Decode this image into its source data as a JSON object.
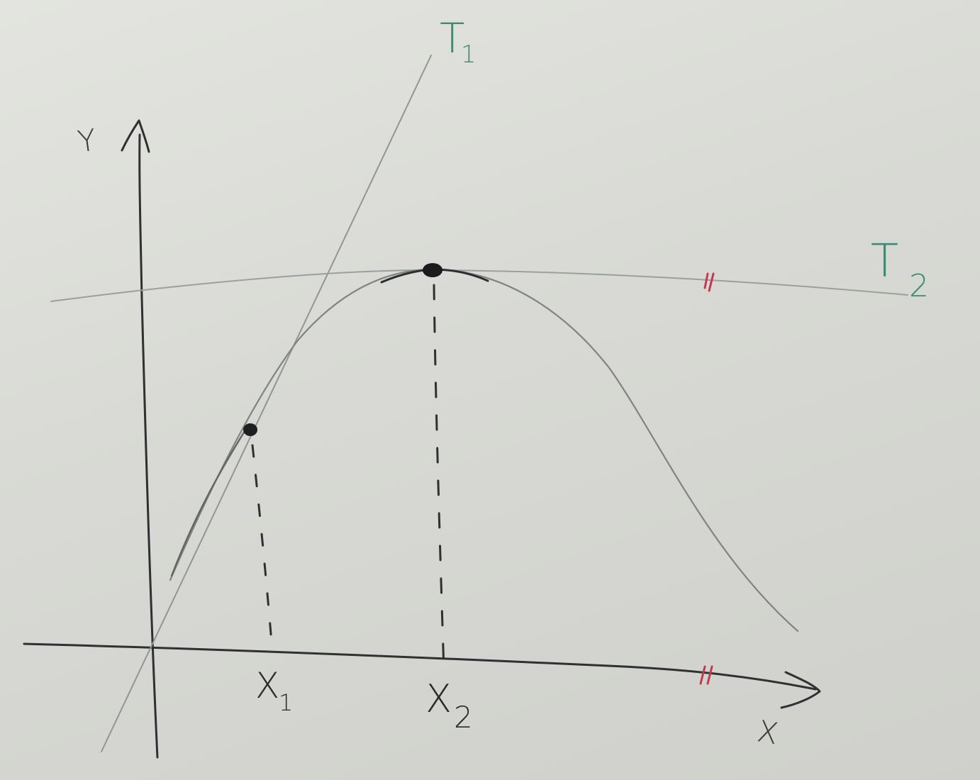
{
  "labels": {
    "y_axis": "Y",
    "x_axis": "X",
    "x1": "X",
    "x1_sub": "1",
    "x2": "X",
    "x2_sub": "2",
    "t1": "T",
    "t1_sub": "1",
    "t2": "T",
    "t2_sub": "2"
  },
  "colors": {
    "ink_black": "#2a2b2c",
    "ink_grey": "#7f8583",
    "ink_green": "#3f8a74",
    "ink_red": "#c23a52",
    "board": "#d9dad5"
  }
}
